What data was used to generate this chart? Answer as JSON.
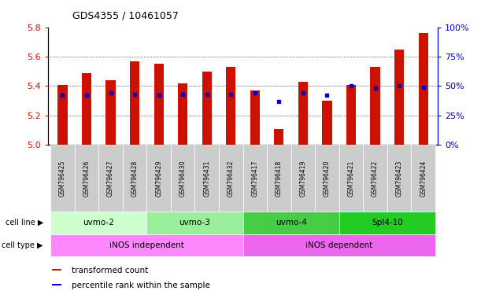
{
  "title": "GDS4355 / 10461057",
  "samples": [
    "GSM796425",
    "GSM796426",
    "GSM796427",
    "GSM796428",
    "GSM796429",
    "GSM796430",
    "GSM796431",
    "GSM796432",
    "GSM796417",
    "GSM796418",
    "GSM796419",
    "GSM796420",
    "GSM796421",
    "GSM796422",
    "GSM796423",
    "GSM796424"
  ],
  "transformed_count": [
    5.41,
    5.49,
    5.44,
    5.57,
    5.55,
    5.42,
    5.5,
    5.53,
    5.37,
    5.11,
    5.43,
    5.3,
    5.41,
    5.53,
    5.65,
    5.76
  ],
  "percentile_rank": [
    42,
    42,
    44,
    43,
    42,
    43,
    43,
    43,
    44,
    37,
    44,
    42,
    50,
    48,
    50,
    49
  ],
  "ylim_left": [
    5.0,
    5.8
  ],
  "ylim_right": [
    0,
    100
  ],
  "yticks_left": [
    5.0,
    5.2,
    5.4,
    5.6,
    5.8
  ],
  "yticks_right": [
    0,
    25,
    50,
    75,
    100
  ],
  "cell_lines": [
    {
      "label": "uvmo-2",
      "start": 0,
      "end": 3,
      "color": "#ccffcc"
    },
    {
      "label": "uvmo-3",
      "start": 4,
      "end": 7,
      "color": "#99ee99"
    },
    {
      "label": "uvmo-4",
      "start": 8,
      "end": 11,
      "color": "#44cc44"
    },
    {
      "label": "Spl4-10",
      "start": 12,
      "end": 15,
      "color": "#22cc22"
    }
  ],
  "cell_types": [
    {
      "label": "iNOS independent",
      "start": 0,
      "end": 7,
      "color": "#ff88ff"
    },
    {
      "label": "iNOS dependent",
      "start": 8,
      "end": 15,
      "color": "#ee66ee"
    }
  ],
  "bar_color": "#cc1100",
  "dot_color": "#0000cc",
  "left_axis_color": "#cc1100",
  "right_axis_color": "#0000cc",
  "bar_width": 0.4,
  "baseline": 5.0,
  "legend_items": [
    {
      "label": "transformed count",
      "color": "#cc1100"
    },
    {
      "label": "percentile rank within the sample",
      "color": "#0000cc"
    }
  ],
  "sample_box_color": "#cccccc",
  "fig_width": 6.11,
  "fig_height": 3.84
}
